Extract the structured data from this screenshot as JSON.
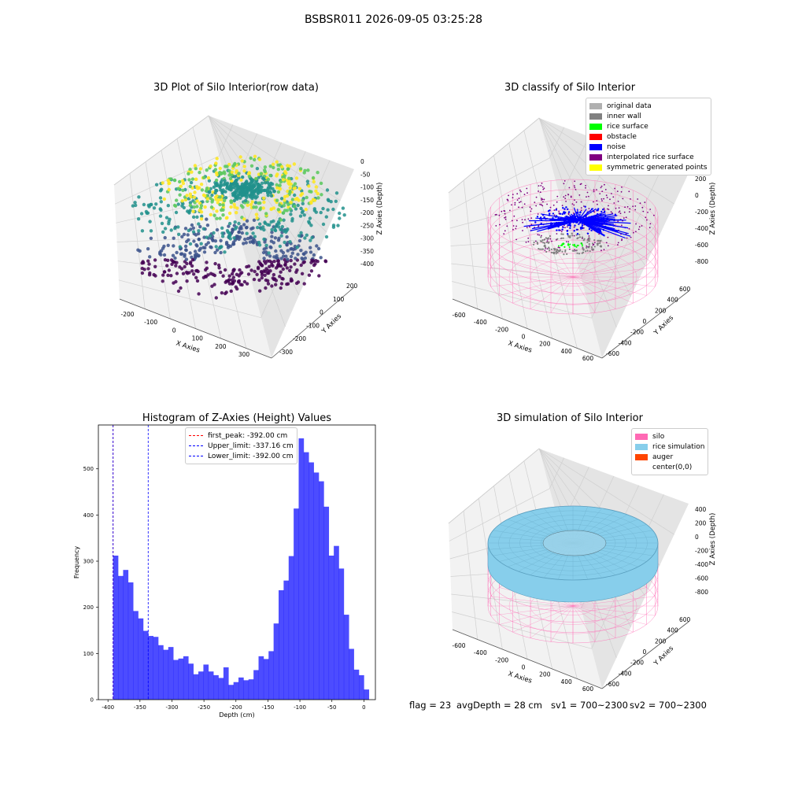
{
  "figure": {
    "suptitle": "BSBSR011 2026-09-05 03:25:28",
    "status": {
      "flag": "flag = 23",
      "avg_depth": "avgDepth = 28 cm",
      "sv1": "sv1 = 700~2300",
      "sv2": "sv2 = 700~2300"
    }
  },
  "panels": {
    "raw": {
      "title": "3D Plot of Silo Interior(row data)",
      "xlabel": "X Axies",
      "ylabel": "Y Axies",
      "zlabel": "Z Axies (Depth)",
      "xticks": [
        "-200",
        "-100",
        "0",
        "100",
        "200",
        "300"
      ],
      "yticks": [
        "-300",
        "-200",
        "-100",
        "0",
        "100",
        "200"
      ],
      "zticks": [
        "0",
        "-50",
        "-100",
        "-150",
        "-200",
        "-250",
        "-300",
        "-350",
        "-400"
      ],
      "colormap": [
        "#440154",
        "#3b528b",
        "#21918c",
        "#5ec962",
        "#fde725"
      ]
    },
    "classify": {
      "title": "3D classify of Silo Interior",
      "xlabel": "X Axies",
      "ylabel": "Y Axies",
      "zlabel": "Z Axies (Depth)",
      "xticks": [
        "-600",
        "-400",
        "-200",
        "0",
        "200",
        "400",
        "600"
      ],
      "yticks": [
        "-600",
        "-400",
        "-200",
        "0",
        "200",
        "400",
        "600"
      ],
      "zticks": [
        "200",
        "0",
        "-200",
        "-400",
        "-600",
        "-800"
      ],
      "legend": [
        {
          "label": "original data",
          "color": "#b0b0b0"
        },
        {
          "label": "inner wall",
          "color": "#808080"
        },
        {
          "label": "rice surface",
          "color": "#00ff00"
        },
        {
          "label": "obstacle",
          "color": "#ff0000"
        },
        {
          "label": "noise",
          "color": "#0000ff"
        },
        {
          "label": "interpolated rice surface",
          "color": "#800080"
        },
        {
          "label": "symmetric generated points",
          "color": "#ffff00"
        }
      ]
    },
    "histogram": {
      "title": "Histogram of Z-Axies (Height) Values",
      "xlabel": "Depth (cm)",
      "ylabel": "Frequency",
      "legend": [
        {
          "label": "first_peak: -392.00 cm",
          "color": "#ff0000"
        },
        {
          "label": "Upper_limit: -337.16 cm",
          "color": "#0000ff"
        },
        {
          "label": "Lower_limit: -392.00 cm",
          "color": "#0000ff"
        }
      ]
    },
    "simulation": {
      "title": "3D simulation of Silo Interior",
      "xlabel": "X Axies",
      "ylabel": "Y Axies",
      "zlabel": "Z Axies (Depth)",
      "xticks": [
        "-600",
        "-400",
        "-200",
        "0",
        "200",
        "400",
        "600"
      ],
      "yticks": [
        "-600",
        "-400",
        "-200",
        "0",
        "200",
        "400",
        "600"
      ],
      "zticks": [
        "400",
        "200",
        "0",
        "-200",
        "-400",
        "-600",
        "-800"
      ],
      "legend": [
        {
          "label": "silo",
          "color": "#ff69b4"
        },
        {
          "label": "rice simulation",
          "color": "#87ceeb"
        },
        {
          "label": "auger",
          "color": "#ff4500"
        },
        {
          "label": "center(0,0)",
          "color": "#ffffff"
        }
      ]
    }
  },
  "chart_data": {
    "type": "bar",
    "title": "Histogram of Z-Axies (Height) Values",
    "xlabel": "Depth (cm)",
    "ylabel": "Frequency",
    "bin_start": -392,
    "bin_width": 7.84,
    "values": [
      312,
      268,
      281,
      254,
      192,
      176,
      149,
      138,
      136,
      118,
      108,
      114,
      86,
      89,
      94,
      78,
      55,
      61,
      76,
      61,
      53,
      47,
      70,
      32,
      38,
      48,
      42,
      44,
      64,
      94,
      88,
      105,
      165,
      237,
      258,
      311,
      414,
      566,
      536,
      514,
      492,
      473,
      418,
      312,
      333,
      284,
      184,
      110,
      65,
      53,
      22
    ],
    "xlim": [
      -415,
      18
    ],
    "ylim": [
      0,
      595
    ],
    "xticks": [
      -400,
      -350,
      -300,
      -250,
      -200,
      -150,
      -100,
      -50,
      0
    ],
    "yticks": [
      0,
      100,
      200,
      300,
      400,
      500
    ],
    "bar_color": "#0000ff",
    "vlines": [
      {
        "name": "first_peak",
        "x": -392.0,
        "color": "#ff0000"
      },
      {
        "name": "Upper_limit",
        "x": -337.16,
        "color": "#0000ff"
      },
      {
        "name": "Lower_limit",
        "x": -392.0,
        "color": "#0000ff"
      }
    ],
    "legend_position": "top-center"
  }
}
